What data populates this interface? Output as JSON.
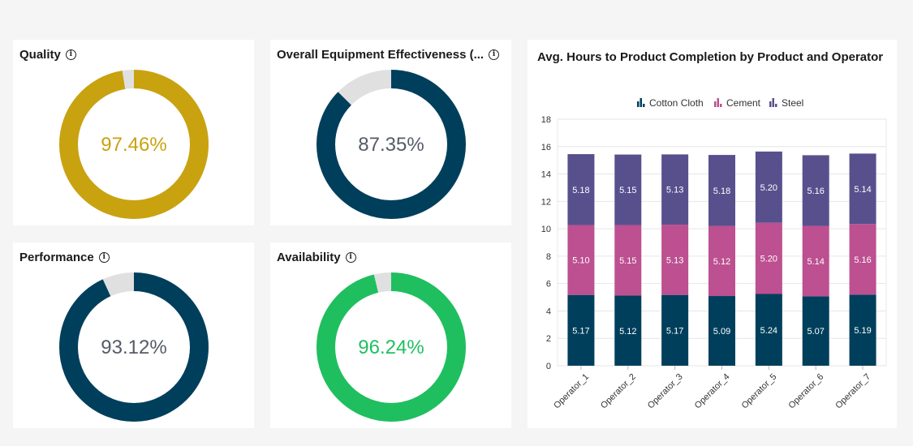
{
  "kpis": [
    {
      "title": "Quality",
      "value": 97.46,
      "value_label": "97.46%",
      "color": "#c9a210",
      "text_color": "#c9a210"
    },
    {
      "title": "Overall Equipment Effectiveness (...",
      "value": 87.35,
      "value_label": "87.35%",
      "color": "#003f5c",
      "text_color": "#555b66"
    },
    {
      "title": "Performance",
      "value": 93.12,
      "value_label": "93.12%",
      "color": "#003f5c",
      "text_color": "#555b66"
    },
    {
      "title": "Availability",
      "value": 96.24,
      "value_label": "96.24%",
      "color": "#1fbf5f",
      "text_color": "#1fbf5f"
    }
  ],
  "track_color": "#e0e0e0",
  "chart_data": {
    "type": "bar",
    "stacked": true,
    "title": "Avg. Hours to Product Completion by Product and Operator",
    "categories": [
      "Operator_1",
      "Operator_2",
      "Operator_3",
      "Operator_4",
      "Operator_5",
      "Operator_6",
      "Operator_7"
    ],
    "series": [
      {
        "name": "Cotton Cloth",
        "color": "#003f5c",
        "values": [
          5.17,
          5.12,
          5.17,
          5.09,
          5.24,
          5.07,
          5.19
        ],
        "labels": [
          "5.17",
          "5.12",
          "5.17",
          "5.09",
          "5.24",
          "5.07",
          "5.19"
        ]
      },
      {
        "name": "Cement",
        "color": "#bc5090",
        "values": [
          5.1,
          5.15,
          5.13,
          5.12,
          5.2,
          5.14,
          5.16
        ],
        "labels": [
          "5.10",
          "5.15",
          "5.13",
          "5.12",
          "5.20",
          "5.14",
          "5.16"
        ]
      },
      {
        "name": "Steel",
        "color": "#58508d",
        "values": [
          5.18,
          5.15,
          5.13,
          5.18,
          5.2,
          5.16,
          5.14
        ],
        "labels": [
          "5.18",
          "5.15",
          "5.13",
          "5.18",
          "5.20",
          "5.16",
          "5.14"
        ]
      }
    ],
    "ylim": [
      0,
      18
    ],
    "yticks": [
      0,
      2,
      4,
      6,
      8,
      10,
      12,
      14,
      16,
      18
    ],
    "ytick_labels": [
      "0",
      "2",
      "4",
      "6",
      "8",
      "10",
      "12",
      "14",
      "16",
      "18"
    ],
    "legend_position": "top-center",
    "grid": true
  }
}
